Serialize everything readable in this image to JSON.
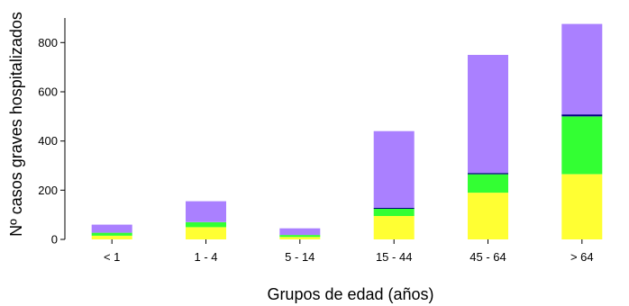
{
  "chart_data": {
    "type": "bar",
    "stacked": true,
    "categories": [
      "< 1",
      "1 - 4",
      "5 - 14",
      "15 - 44",
      "45 - 64",
      "> 64"
    ],
    "series": [
      {
        "color": "#ffff33",
        "values": [
          15,
          50,
          10,
          95,
          190,
          265
        ]
      },
      {
        "color": "#33ff33",
        "values": [
          12,
          20,
          8,
          30,
          75,
          235
        ]
      },
      {
        "color": "#000080",
        "values": [
          0,
          0,
          0,
          3,
          5,
          8
        ]
      },
      {
        "color": "#aa80ff",
        "values": [
          33,
          85,
          27,
          312,
          480,
          368
        ]
      }
    ],
    "xlabel": "Grupos de edad (años)",
    "ylabel": "Nº casos graves hospitalizados",
    "ylim": [
      0,
      900
    ],
    "yticks": [
      0,
      200,
      400,
      600,
      800
    ],
    "grid": false,
    "legend": "none"
  }
}
